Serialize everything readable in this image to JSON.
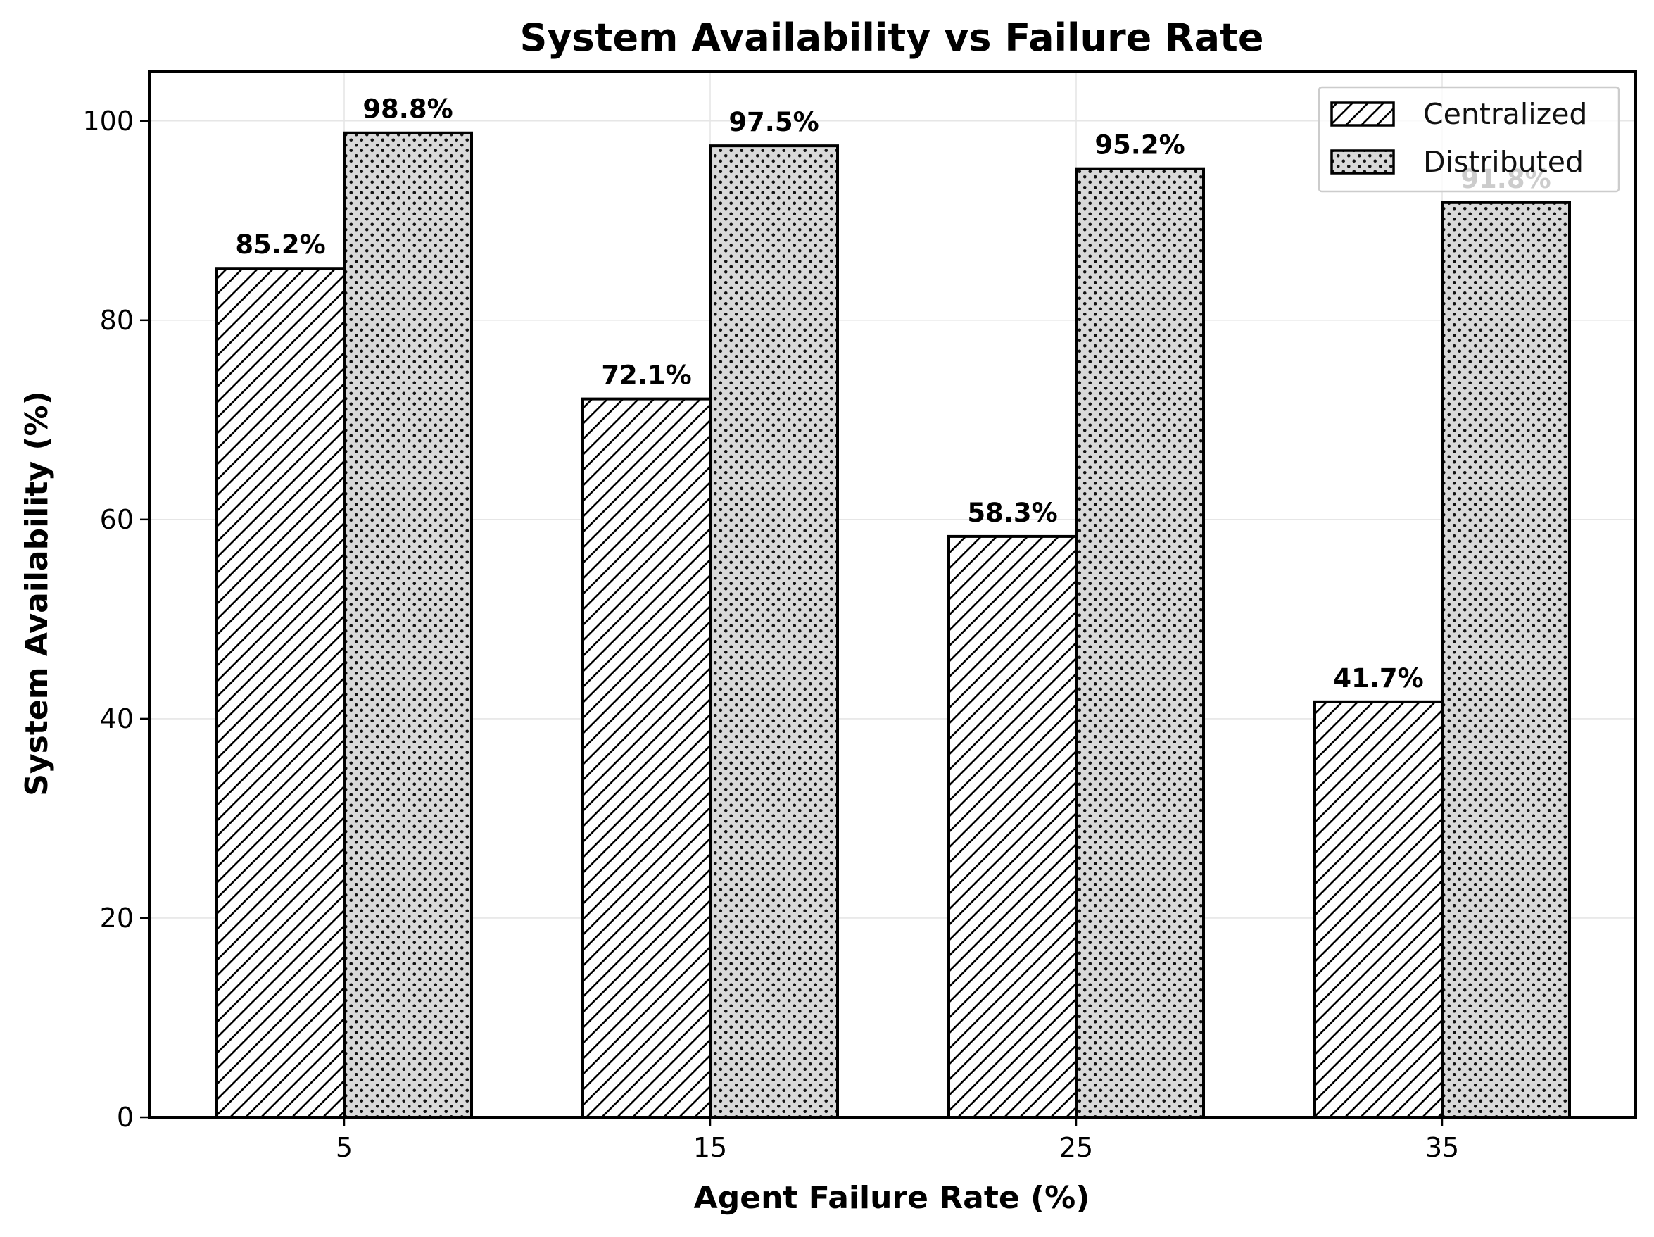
{
  "chart_data": {
    "type": "bar",
    "title": "System Availability vs Failure Rate",
    "xlabel": "Agent Failure Rate (%)",
    "ylabel": "System Availability (%)",
    "categories": [
      "5",
      "15",
      "25",
      "35"
    ],
    "series": [
      {
        "name": "Centralized",
        "values": [
          85.2,
          72.1,
          58.3,
          41.7
        ],
        "labels": [
          "85.2%",
          "72.1%",
          "58.3%",
          "41.7%"
        ],
        "pattern": "diagonal-hatch",
        "color": "#ffffff"
      },
      {
        "name": "Distributed",
        "values": [
          98.8,
          97.5,
          95.2,
          91.8
        ],
        "labels": [
          "98.8%",
          "97.5%",
          "95.2%",
          "91.8%"
        ],
        "pattern": "dots",
        "color": "#d9d9d9"
      }
    ],
    "yticks": [
      "0",
      "20",
      "40",
      "60",
      "80",
      "100"
    ],
    "ylim": [
      0,
      105
    ],
    "grid": true,
    "legend": "top-right"
  }
}
